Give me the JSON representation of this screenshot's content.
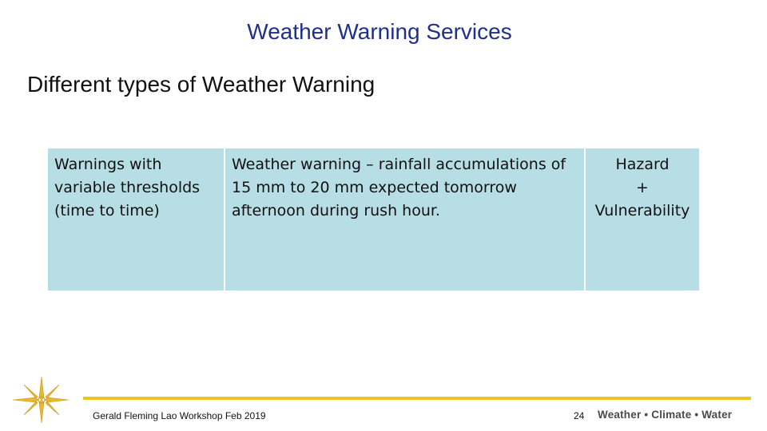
{
  "slide": {
    "title": "Weather Warning Services",
    "subtitle": "Different types of Weather Warning"
  },
  "table": {
    "col1": [
      "Warnings with",
      "variable thresholds",
      "(time to time)"
    ],
    "col2": [
      "Weather warning – rainfall accumulations of",
      "15 mm to 20 mm expected tomorrow",
      "afternoon during rush hour."
    ],
    "col3": [
      "Hazard",
      "+",
      "Vulnerability"
    ]
  },
  "footer": {
    "text": "Gerald Fleming Lao Workshop Feb 2019",
    "page_number": "24",
    "tagline": "Weather • Climate • Water"
  },
  "colors": {
    "title": "#1f2f8c",
    "table_fill": "#b7dee4",
    "footer_rule": "#f2c318"
  },
  "icons": {
    "logo": "compass-star-icon"
  }
}
